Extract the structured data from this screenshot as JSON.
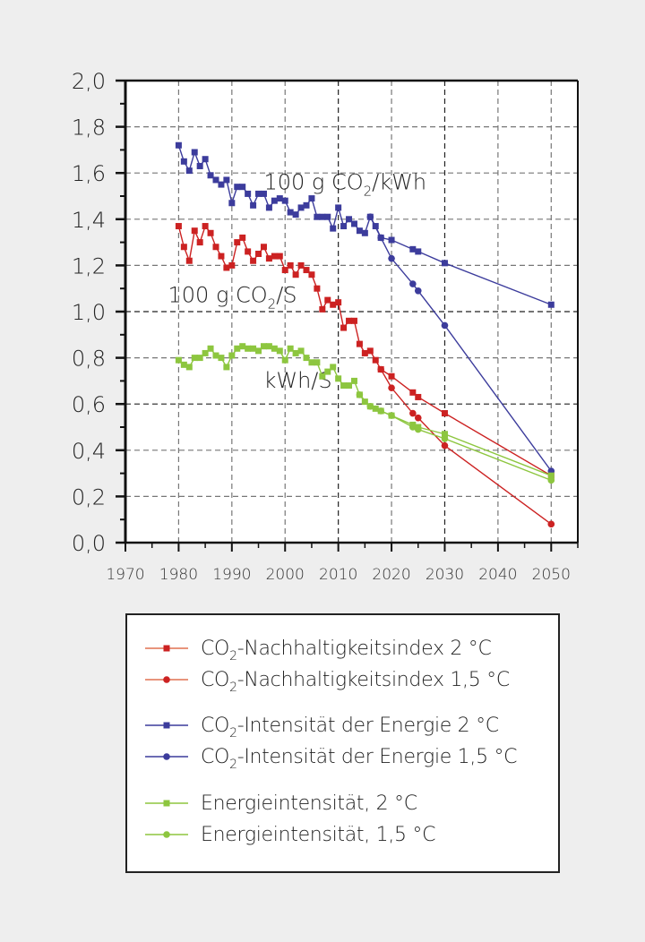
{
  "chart_data": {
    "type": "line",
    "title": "",
    "xlabel": "",
    "ylabel": "",
    "xlim": [
      1970,
      2055
    ],
    "ylim": [
      0.0,
      2.0
    ],
    "xticks": [
      "1970",
      "1980",
      "1990",
      "2000",
      "2010",
      "2020",
      "2030",
      "2040",
      "2050"
    ],
    "yticks": [
      "0,0",
      "0,2",
      "0,4",
      "0,6",
      "0,8",
      "1,0",
      "1,2",
      "1,4",
      "1,6",
      "1,8",
      "2,0"
    ],
    "grid": true,
    "legend_placement": "bottom",
    "annotations": [
      {
        "pre": "100 g CO",
        "sub": "2",
        "post": "/kWh",
        "x": 1996,
        "y": 1.53
      },
      {
        "pre": "100 g CO",
        "sub": "2",
        "post": "/S",
        "x": 1978,
        "y": 1.04
      },
      {
        "pre": "kWh/S",
        "sub": "",
        "post": "",
        "x": 1996,
        "y": 0.67
      }
    ],
    "series": [
      {
        "name": "CO2-Nachhaltigkeitsindex 2 °C",
        "label": {
          "pre": "CO",
          "sub": "2",
          "post": "-Nachhaltigkeitsindex 2 °C"
        },
        "color": "#cc2222",
        "marker": "square",
        "x": [
          1980,
          1981,
          1982,
          1983,
          1984,
          1985,
          1986,
          1987,
          1988,
          1989,
          1990,
          1991,
          1992,
          1993,
          1994,
          1995,
          1996,
          1997,
          1998,
          1999,
          2000,
          2001,
          2002,
          2003,
          2004,
          2005,
          2006,
          2007,
          2008,
          2009,
          2010,
          2011,
          2012,
          2013,
          2014,
          2015,
          2016,
          2017,
          2018,
          2020,
          2024,
          2025,
          2030,
          2050
        ],
        "y": [
          1.37,
          1.28,
          1.22,
          1.35,
          1.3,
          1.37,
          1.34,
          1.28,
          1.24,
          1.19,
          1.2,
          1.3,
          1.32,
          1.26,
          1.22,
          1.25,
          1.28,
          1.23,
          1.24,
          1.24,
          1.18,
          1.2,
          1.16,
          1.2,
          1.18,
          1.16,
          1.1,
          1.01,
          1.05,
          1.03,
          1.04,
          0.93,
          0.96,
          0.96,
          0.86,
          0.82,
          0.83,
          0.79,
          0.75,
          0.72,
          0.65,
          0.63,
          0.56,
          0.29
        ]
      },
      {
        "name": "CO2-Nachhaltigkeitsindex 1,5 °C",
        "label": {
          "pre": "CO",
          "sub": "2",
          "post": "-Nachhaltigkeitsindex 1,5 °C"
        },
        "color": "#cc2222",
        "marker": "circle",
        "x": [
          2018,
          2020,
          2024,
          2025,
          2030,
          2050
        ],
        "y": [
          0.75,
          0.67,
          0.56,
          0.54,
          0.42,
          0.08
        ]
      },
      {
        "name": "CO2-Intensität der Energie 2 °C",
        "label": {
          "pre": "CO",
          "sub": "2",
          "post": "-Intensität der Energie 2 °C"
        },
        "color": "#3c3c9c",
        "marker": "square",
        "x": [
          1980,
          1981,
          1982,
          1983,
          1984,
          1985,
          1986,
          1987,
          1988,
          1989,
          1990,
          1991,
          1992,
          1993,
          1994,
          1995,
          1996,
          1997,
          1998,
          1999,
          2000,
          2001,
          2002,
          2003,
          2004,
          2005,
          2006,
          2007,
          2008,
          2009,
          2010,
          2011,
          2012,
          2013,
          2014,
          2015,
          2016,
          2017,
          2018,
          2020,
          2024,
          2025,
          2030,
          2050
        ],
        "y": [
          1.72,
          1.65,
          1.61,
          1.69,
          1.63,
          1.66,
          1.59,
          1.57,
          1.55,
          1.57,
          1.47,
          1.54,
          1.54,
          1.51,
          1.46,
          1.51,
          1.51,
          1.45,
          1.48,
          1.49,
          1.48,
          1.43,
          1.42,
          1.45,
          1.46,
          1.49,
          1.41,
          1.41,
          1.41,
          1.36,
          1.45,
          1.37,
          1.4,
          1.38,
          1.35,
          1.34,
          1.41,
          1.37,
          1.32,
          1.31,
          1.27,
          1.26,
          1.21,
          1.03
        ]
      },
      {
        "name": "CO2-Intensität der Energie 1,5 °C",
        "label": {
          "pre": "CO",
          "sub": "2",
          "post": "-Intensität der Energie 1,5 °C"
        },
        "color": "#3c3c9c",
        "marker": "circle",
        "x": [
          2016,
          2018,
          2020,
          2024,
          2025,
          2030,
          2050
        ],
        "y": [
          1.41,
          1.32,
          1.23,
          1.12,
          1.09,
          0.94,
          0.31
        ]
      },
      {
        "name": "Energieintensität, 2 °C",
        "label": {
          "pre": "Energieintensität, 2 °C",
          "sub": "",
          "post": ""
        },
        "color": "#8dc63f",
        "marker": "square",
        "x": [
          1980,
          1981,
          1982,
          1983,
          1984,
          1985,
          1986,
          1987,
          1988,
          1989,
          1990,
          1991,
          1992,
          1993,
          1994,
          1995,
          1996,
          1997,
          1998,
          1999,
          2000,
          2001,
          2002,
          2003,
          2004,
          2005,
          2006,
          2007,
          2008,
          2009,
          2010,
          2011,
          2012,
          2013,
          2014,
          2015,
          2016,
          2017,
          2018,
          2020,
          2024,
          2025,
          2030,
          2050
        ],
        "y": [
          0.79,
          0.77,
          0.76,
          0.8,
          0.8,
          0.82,
          0.84,
          0.81,
          0.8,
          0.76,
          0.81,
          0.84,
          0.85,
          0.84,
          0.84,
          0.83,
          0.85,
          0.85,
          0.84,
          0.83,
          0.79,
          0.84,
          0.82,
          0.83,
          0.8,
          0.78,
          0.78,
          0.72,
          0.74,
          0.76,
          0.71,
          0.68,
          0.68,
          0.7,
          0.64,
          0.61,
          0.59,
          0.58,
          0.57,
          0.55,
          0.51,
          0.5,
          0.47,
          0.29
        ]
      },
      {
        "name": "Energieintensität, 1,5 °C",
        "label": {
          "pre": "Energieintensität, 1,5 °C",
          "sub": "",
          "post": ""
        },
        "color": "#8dc63f",
        "marker": "circle",
        "x": [
          2014,
          2016,
          2018,
          2020,
          2024,
          2025,
          2030,
          2050
        ],
        "y": [
          0.64,
          0.59,
          0.57,
          0.55,
          0.5,
          0.49,
          0.45,
          0.27
        ]
      }
    ]
  }
}
